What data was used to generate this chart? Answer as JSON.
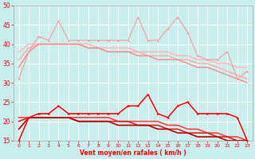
{
  "title": "",
  "xlabel": "Vent moyen/en rafales ( km/h )",
  "ylabel": "",
  "bg_color": "#c8eeed",
  "grid_color": "#ffffff",
  "xlim": [
    -0.5,
    23.5
  ],
  "ylim": [
    15,
    50
  ],
  "yticks": [
    15,
    20,
    25,
    30,
    35,
    40,
    45,
    50
  ],
  "xticks": [
    0,
    1,
    2,
    3,
    4,
    5,
    6,
    7,
    8,
    9,
    10,
    11,
    12,
    13,
    14,
    15,
    16,
    17,
    18,
    19,
    20,
    21,
    22,
    23
  ],
  "series": [
    {
      "label": "rafales_light_marker",
      "x": [
        0,
        1,
        2,
        3,
        4,
        5,
        6,
        7,
        8,
        9,
        10,
        11,
        12,
        13,
        14,
        15,
        16,
        17,
        18,
        19,
        20,
        21,
        22,
        23
      ],
      "y": [
        31,
        38,
        42,
        41,
        46,
        41,
        41,
        41,
        41,
        41,
        41,
        41,
        47,
        41,
        41,
        44,
        47,
        43,
        37,
        36,
        36,
        38,
        31,
        33
      ],
      "color": "#ff9999",
      "lw": 0.8,
      "marker": "^",
      "ms": 2.0,
      "zorder": 5
    },
    {
      "label": "rafales_trend1",
      "x": [
        0,
        1,
        2,
        3,
        4,
        5,
        6,
        7,
        8,
        9,
        10,
        11,
        12,
        13,
        14,
        15,
        16,
        17,
        18,
        19,
        20,
        21,
        22,
        23
      ],
      "y": [
        38,
        40,
        40,
        40,
        40,
        40,
        40,
        40,
        39,
        39,
        39,
        39,
        38,
        38,
        38,
        38,
        37,
        37,
        36,
        36,
        35,
        35,
        34,
        34
      ],
      "color": "#ffbbbb",
      "lw": 1.2,
      "marker": null,
      "ms": 0,
      "zorder": 3
    },
    {
      "label": "rafales_trend2",
      "x": [
        0,
        1,
        2,
        3,
        4,
        5,
        6,
        7,
        8,
        9,
        10,
        11,
        12,
        13,
        14,
        15,
        16,
        17,
        18,
        19,
        20,
        21,
        22,
        23
      ],
      "y": [
        36,
        39,
        40,
        40,
        40,
        40,
        40,
        39,
        39,
        38,
        38,
        38,
        38,
        37,
        37,
        37,
        36,
        36,
        35,
        35,
        34,
        33,
        32,
        31
      ],
      "color": "#ffaaaa",
      "lw": 1.0,
      "marker": null,
      "ms": 0,
      "zorder": 3
    },
    {
      "label": "rafales_trend3",
      "x": [
        0,
        1,
        2,
        3,
        4,
        5,
        6,
        7,
        8,
        9,
        10,
        11,
        12,
        13,
        14,
        15,
        16,
        17,
        18,
        19,
        20,
        21,
        22,
        23
      ],
      "y": [
        34,
        38,
        40,
        40,
        40,
        40,
        40,
        39,
        39,
        38,
        38,
        38,
        37,
        37,
        36,
        36,
        36,
        35,
        34,
        34,
        33,
        32,
        31,
        30
      ],
      "color": "#ff8888",
      "lw": 1.0,
      "marker": null,
      "ms": 0,
      "zorder": 3
    },
    {
      "label": "vent_light_marker",
      "x": [
        0,
        1,
        2,
        3,
        4,
        5,
        6,
        7,
        8,
        9,
        10,
        11,
        12,
        13,
        14,
        15,
        16,
        17,
        18,
        19,
        20,
        21,
        22,
        23
      ],
      "y": [
        15,
        21,
        22,
        22,
        24,
        22,
        22,
        22,
        22,
        22,
        22,
        24,
        24,
        27,
        22,
        21,
        24,
        25,
        22,
        22,
        22,
        22,
        21,
        15
      ],
      "color": "#ff6666",
      "lw": 0.8,
      "marker": "^",
      "ms": 2.0,
      "zorder": 5
    },
    {
      "label": "vent_trend1",
      "x": [
        0,
        1,
        2,
        3,
        4,
        5,
        6,
        7,
        8,
        9,
        10,
        11,
        12,
        13,
        14,
        15,
        16,
        17,
        18,
        19,
        20,
        21,
        22,
        23
      ],
      "y": [
        21,
        21,
        21,
        21,
        21,
        21,
        21,
        21,
        21,
        21,
        20,
        20,
        20,
        20,
        20,
        19,
        19,
        18,
        18,
        17,
        17,
        16,
        16,
        15
      ],
      "color": "#ff4444",
      "lw": 1.2,
      "marker": null,
      "ms": 0,
      "zorder": 3
    },
    {
      "label": "vent_trend2",
      "x": [
        0,
        1,
        2,
        3,
        4,
        5,
        6,
        7,
        8,
        9,
        10,
        11,
        12,
        13,
        14,
        15,
        16,
        17,
        18,
        19,
        20,
        21,
        22,
        23
      ],
      "y": [
        20,
        21,
        21,
        21,
        21,
        21,
        20,
        20,
        20,
        20,
        20,
        20,
        19,
        19,
        19,
        18,
        18,
        17,
        17,
        17,
        16,
        16,
        15,
        15
      ],
      "color": "#dd2222",
      "lw": 1.2,
      "marker": null,
      "ms": 0,
      "zorder": 3
    },
    {
      "label": "vent_trend3",
      "x": [
        0,
        1,
        2,
        3,
        4,
        5,
        6,
        7,
        8,
        9,
        10,
        11,
        12,
        13,
        14,
        15,
        16,
        17,
        18,
        19,
        20,
        21,
        22,
        23
      ],
      "y": [
        18,
        21,
        21,
        21,
        21,
        21,
        20,
        20,
        20,
        20,
        19,
        19,
        19,
        19,
        18,
        18,
        17,
        17,
        16,
        16,
        16,
        15,
        15,
        15
      ],
      "color": "#bb0000",
      "lw": 1.2,
      "marker": null,
      "ms": 0,
      "zorder": 3
    },
    {
      "label": "vent_moyen_marker",
      "x": [
        0,
        1,
        2,
        3,
        4,
        5,
        6,
        7,
        8,
        9,
        10,
        11,
        12,
        13,
        14,
        15,
        16,
        17,
        18,
        19,
        20,
        21,
        22,
        23
      ],
      "y": [
        15,
        21,
        22,
        22,
        24,
        22,
        22,
        22,
        22,
        22,
        22,
        24,
        24,
        27,
        22,
        21,
        24,
        25,
        22,
        22,
        22,
        22,
        21,
        15
      ],
      "color": "#ff0000",
      "lw": 1.0,
      "marker": ">",
      "ms": 2.0,
      "zorder": 6
    }
  ]
}
